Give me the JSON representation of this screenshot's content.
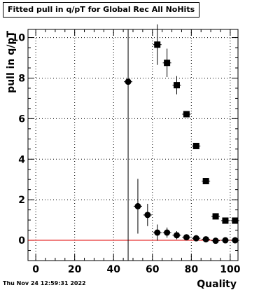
{
  "title": "Fitted pull in q/pT for Global Rec All NoHits",
  "timestamp": "Thu Nov 24 12:59:31 2022",
  "chart_data": {
    "type": "scatter",
    "title": "Fitted pull in q/pT for Global Rec All NoHits",
    "xlabel": "Quality",
    "ylabel": "pull in q/pT",
    "xlim": [
      -4,
      104
    ],
    "ylim": [
      -1,
      10.4
    ],
    "xticks": [
      0,
      20,
      40,
      60,
      80,
      100
    ],
    "yticks": [
      0,
      2,
      4,
      6,
      8,
      10
    ],
    "grid": true,
    "reference_line": {
      "y": 0,
      "color": "#e00000"
    },
    "vertical_line_x": 47.5,
    "series": [
      {
        "marker": "square",
        "points": [
          {
            "x": 62.5,
            "y": 9.65,
            "err": 1.0
          },
          {
            "x": 67.5,
            "y": 8.75,
            "err": 0.7
          },
          {
            "x": 72.5,
            "y": 7.65,
            "err": 0.45
          },
          {
            "x": 77.5,
            "y": 6.22,
            "err": 0.1
          },
          {
            "x": 82.5,
            "y": 4.65,
            "err": 0.1
          },
          {
            "x": 87.5,
            "y": 2.92,
            "err": 0.1
          },
          {
            "x": 92.5,
            "y": 1.18,
            "err": 0.1
          },
          {
            "x": 97.5,
            "y": 0.97,
            "err": 0.1
          },
          {
            "x": 102.5,
            "y": 0.97,
            "err": 0.1
          }
        ]
      },
      {
        "marker": "circle",
        "points": [
          {
            "x": 47.5,
            "y": 7.82,
            "err": 0.1
          },
          {
            "x": 52.5,
            "y": 1.68,
            "err": 1.35
          },
          {
            "x": 57.5,
            "y": 1.25,
            "err": 0.55
          },
          {
            "x": 62.5,
            "y": 0.38,
            "err": 0.4
          },
          {
            "x": 67.5,
            "y": 0.38,
            "err": 0.25
          },
          {
            "x": 72.5,
            "y": 0.25,
            "err": 0.2
          },
          {
            "x": 77.5,
            "y": 0.15,
            "err": 0.1
          },
          {
            "x": 82.5,
            "y": 0.1,
            "err": 0.1
          },
          {
            "x": 87.5,
            "y": 0.05,
            "err": 0.05
          },
          {
            "x": 92.5,
            "y": -0.02,
            "err": 0.05
          },
          {
            "x": 97.5,
            "y": 0.0,
            "err": 0.05
          },
          {
            "x": 102.5,
            "y": 0.0,
            "err": 0.05
          }
        ]
      }
    ]
  }
}
